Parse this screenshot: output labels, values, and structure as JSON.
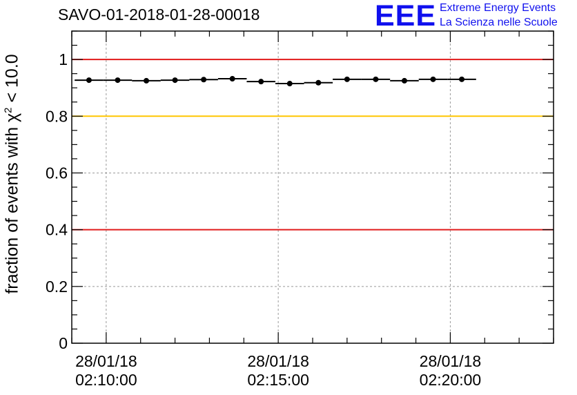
{
  "header": {
    "run_title": "SAVO-01-2018-01-28-00018",
    "logo_text": "EEE",
    "logo_line1": "Extreme Energy Events",
    "logo_line2": "La Scienza nelle Scuole"
  },
  "chart_data": {
    "type": "scatter",
    "title": "SAVO-01-2018-01-28-00018",
    "ylabel_prefix": "fraction of events with χ",
    "ylabel_sup": "2",
    "ylabel_suffix": " < 10.0",
    "ylim": [
      0,
      1.1
    ],
    "yticks": [
      {
        "value": 0,
        "label": "0"
      },
      {
        "value": 0.2,
        "label": "0.2"
      },
      {
        "value": 0.4,
        "label": "0.4"
      },
      {
        "value": 0.6,
        "label": "0.6"
      },
      {
        "value": 0.8,
        "label": "0.8"
      },
      {
        "value": 1.0,
        "label": "1"
      }
    ],
    "xlim": [
      "02:09:00",
      "02:23:00"
    ],
    "xticks": [
      {
        "time": "02:10:00",
        "date": "28/01/18"
      },
      {
        "time": "02:15:00",
        "date": "28/01/18"
      },
      {
        "time": "02:20:00",
        "date": "28/01/18"
      }
    ],
    "grid": true,
    "reference_lines": [
      {
        "value": 1.0,
        "color": "#e11a1a"
      },
      {
        "value": 0.8,
        "color": "#ffc600"
      },
      {
        "value": 0.4,
        "color": "#e11a1a"
      }
    ],
    "series": [
      {
        "bin_width_seconds": 50,
        "marker_color": "#000000",
        "points": [
          {
            "x": "02:09:30",
            "y": 0.927
          },
          {
            "x": "02:10:20",
            "y": 0.927
          },
          {
            "x": "02:11:10",
            "y": 0.925
          },
          {
            "x": "02:12:00",
            "y": 0.927
          },
          {
            "x": "02:12:50",
            "y": 0.929
          },
          {
            "x": "02:13:40",
            "y": 0.932
          },
          {
            "x": "02:14:30",
            "y": 0.922
          },
          {
            "x": "02:15:20",
            "y": 0.915
          },
          {
            "x": "02:16:10",
            "y": 0.918
          },
          {
            "x": "02:17:00",
            "y": 0.93
          },
          {
            "x": "02:17:50",
            "y": 0.93
          },
          {
            "x": "02:18:40",
            "y": 0.925
          },
          {
            "x": "02:19:30",
            "y": 0.93
          },
          {
            "x": "02:20:20",
            "y": 0.93
          }
        ]
      }
    ]
  }
}
